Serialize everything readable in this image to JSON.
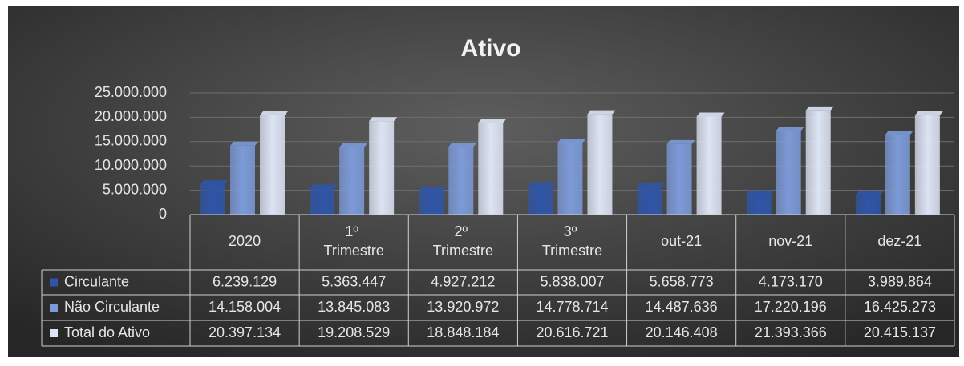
{
  "chart_data": {
    "type": "bar",
    "title": "Ativo",
    "categories": [
      "2020",
      "1º Trimestre",
      "2º Trimestre",
      "3º Trimestre",
      "out-21",
      "nov-21",
      "dez-21"
    ],
    "series": [
      {
        "name": "Circulante",
        "color": "#2f55a8",
        "values": [
          6239129,
          5363447,
          4927212,
          5838007,
          5658773,
          4173170,
          3989864
        ],
        "value_labels": [
          "6.239.129",
          "5.363.447",
          "4.927.212",
          "5.838.007",
          "5.658.773",
          "4.173.170",
          "3.989.864"
        ]
      },
      {
        "name": "Não Circulante",
        "color": "#7c9ad8",
        "values": [
          14158004,
          13845083,
          13920972,
          14778714,
          14487636,
          17220196,
          16425273
        ],
        "value_labels": [
          "14.158.004",
          "13.845.083",
          "13.920.972",
          "14.778.714",
          "14.487.636",
          "17.220.196",
          "16.425.273"
        ]
      },
      {
        "name": "Total do Ativo",
        "color": "#dce3f3",
        "values": [
          20397134,
          19208529,
          18848184,
          20616721,
          20146408,
          21393366,
          20415137
        ],
        "value_labels": [
          "20.397.134",
          "19.208.529",
          "18.848.184",
          "20.616.721",
          "20.146.408",
          "21.393.366",
          "20.415.137"
        ]
      }
    ],
    "ylim": [
      0,
      25000000
    ],
    "yticks": [
      0,
      {
        "value": 5000000,
        "label": "5.000.000"
      },
      {
        "value": 10000000,
        "label": "10.000.000"
      },
      {
        "value": 15000000,
        "label": "15.000.000"
      },
      {
        "value": 20000000,
        "label": "20.000.000"
      },
      {
        "value": 25000000,
        "label": "25.000.000"
      }
    ],
    "grid": true
  }
}
